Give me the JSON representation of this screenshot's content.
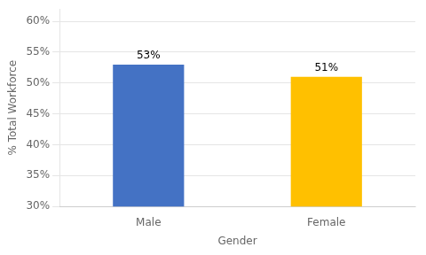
{
  "chart_data": {
    "type": "bar",
    "categories": [
      "Male",
      "Female"
    ],
    "values": [
      53,
      51
    ],
    "value_labels": [
      "53%",
      "51%"
    ],
    "data_labels": true,
    "colors": [
      "#4472C4",
      "#FFC000"
    ],
    "xlabel": "Gender",
    "ylabel": "% Total Workforce",
    "ylim": [
      30,
      62
    ],
    "yticks": [
      {
        "value": 30,
        "label": "30%"
      },
      {
        "value": 35,
        "label": "35%"
      },
      {
        "value": 40,
        "label": "40%"
      },
      {
        "value": 45,
        "label": "45%"
      },
      {
        "value": 50,
        "label": "50%"
      },
      {
        "value": 55,
        "label": "55%"
      },
      {
        "value": 60,
        "label": "60%"
      }
    ],
    "grid": true
  }
}
